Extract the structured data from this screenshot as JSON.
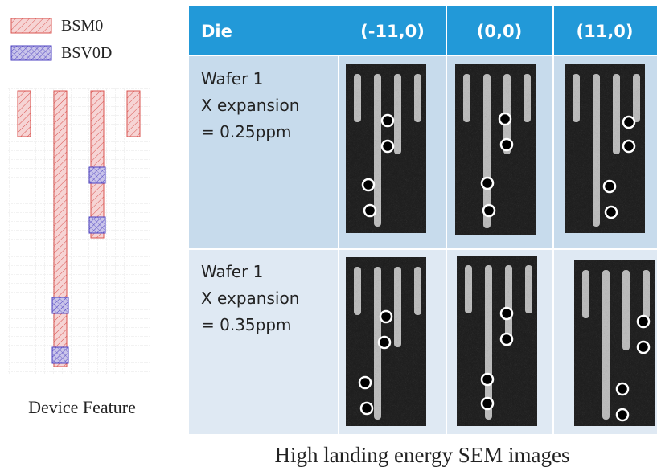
{
  "legend": {
    "items": [
      {
        "label": "BSM0"
      },
      {
        "label": "BSV0D"
      }
    ]
  },
  "layout_caption": "Device Feature",
  "table": {
    "header": [
      "Die",
      "(-11,0)",
      "(0,0)",
      "(11,0)"
    ],
    "rows": [
      [
        "Wafer 1",
        "X expansion",
        "= 0.25ppm"
      ],
      [
        "Wafer 1",
        "X expansion",
        "= 0.35ppm"
      ]
    ]
  },
  "caption": "High landing energy SEM images"
}
